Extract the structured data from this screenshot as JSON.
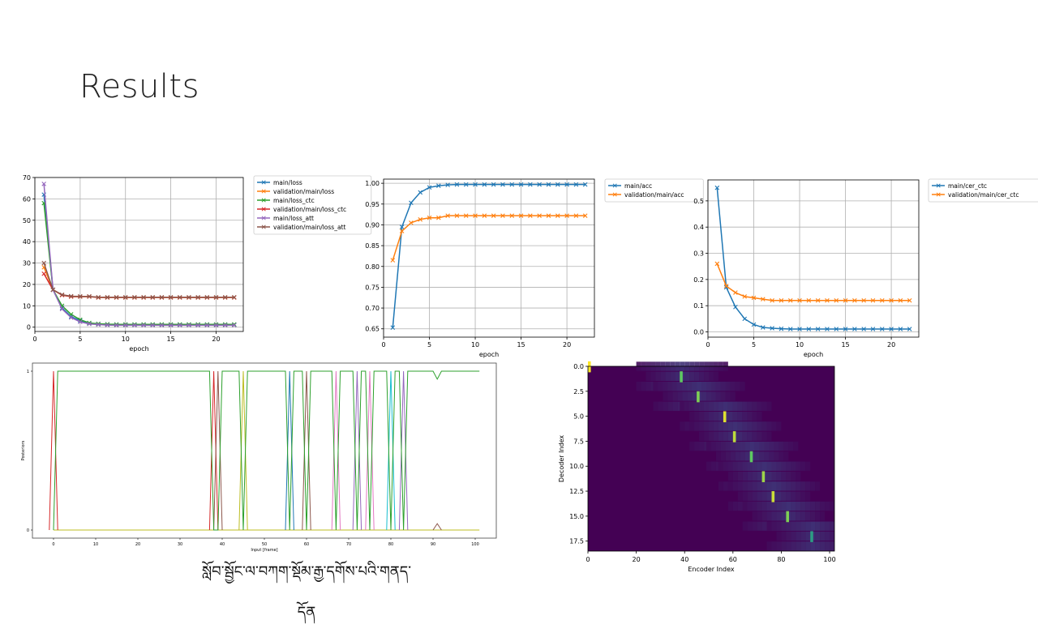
{
  "slide": {
    "title": "Results",
    "caption": "སློབ་སྦྱོང་ལ་བཀག་སྡོམ་རྒྱ་དགོས་པའི་གནད་དོན"
  },
  "chart_data": [
    {
      "id": "loss",
      "type": "line",
      "xlabel": "epoch",
      "ylabel": "",
      "xlim": [
        0,
        23
      ],
      "ylim": [
        -2,
        70
      ],
      "xticks": [
        0,
        5,
        10,
        15,
        20
      ],
      "yticks": [
        0,
        10,
        20,
        30,
        40,
        50,
        60,
        70
      ],
      "grid": true,
      "legend": "outside-right",
      "x": [
        1,
        2,
        3,
        4,
        5,
        6,
        7,
        8,
        9,
        10,
        11,
        12,
        13,
        14,
        15,
        16,
        17,
        18,
        19,
        20,
        21,
        22
      ],
      "series": [
        {
          "name": "main/loss",
          "color": "#1f77b4",
          "values": [
            62,
            17.5,
            9,
            5,
            3,
            1.8,
            1.4,
            1.2,
            1.1,
            1.1,
            1.1,
            1.1,
            1.1,
            1.1,
            1.1,
            1.1,
            1.1,
            1.1,
            1.1,
            1.1,
            1.1,
            1.1
          ]
        },
        {
          "name": "validation/main/loss",
          "color": "#ff7f0e",
          "values": [
            28,
            17.5,
            15,
            14.3,
            14.3,
            14.3,
            13.9,
            13.9,
            13.9,
            13.9,
            13.9,
            13.9,
            13.9,
            13.9,
            13.9,
            13.9,
            13.9,
            13.9,
            13.9,
            13.9,
            13.9,
            13.9
          ]
        },
        {
          "name": "main/loss_ctc",
          "color": "#2ca02c",
          "values": [
            58,
            17.5,
            10,
            6,
            3.5,
            2,
            1.6,
            1.4,
            1.3,
            1.3,
            1.3,
            1.3,
            1.3,
            1.3,
            1.3,
            1.3,
            1.3,
            1.3,
            1.3,
            1.3,
            1.3,
            1.3
          ]
        },
        {
          "name": "validation/main/loss_ctc",
          "color": "#d62728",
          "values": [
            25,
            17.5,
            15,
            14.3,
            14.3,
            14.3,
            13.9,
            13.9,
            13.9,
            13.9,
            13.9,
            13.9,
            13.9,
            13.9,
            13.9,
            13.9,
            13.9,
            13.9,
            13.9,
            13.9,
            13.9,
            13.9
          ]
        },
        {
          "name": "main/loss_att",
          "color": "#9467bd",
          "values": [
            67,
            17.5,
            8.5,
            4.5,
            2.5,
            1.5,
            1.2,
            1.0,
            0.9,
            0.9,
            0.9,
            0.9,
            0.9,
            0.9,
            0.9,
            0.9,
            0.9,
            0.9,
            0.9,
            0.9,
            0.9,
            0.9
          ]
        },
        {
          "name": "validation/main/loss_att",
          "color": "#8c564b",
          "values": [
            30,
            17.5,
            15.2,
            14.5,
            14.4,
            14.4,
            14.0,
            14.0,
            14.0,
            14.0,
            14.0,
            14.0,
            14.0,
            14.0,
            14.0,
            14.0,
            14.0,
            14.0,
            14.0,
            14.0,
            14.0,
            14.0
          ]
        }
      ]
    },
    {
      "id": "acc",
      "type": "line",
      "xlabel": "epoch",
      "ylabel": "",
      "xlim": [
        0,
        23
      ],
      "ylim": [
        0.63,
        1.01
      ],
      "xticks": [
        0,
        5,
        10,
        15,
        20
      ],
      "yticks": [
        0.65,
        0.7,
        0.75,
        0.8,
        0.85,
        0.9,
        0.95,
        1.0
      ],
      "grid": true,
      "legend": "outside-right",
      "x": [
        1,
        2,
        3,
        4,
        5,
        6,
        7,
        8,
        9,
        10,
        11,
        12,
        13,
        14,
        15,
        16,
        17,
        18,
        19,
        20,
        21,
        22
      ],
      "series": [
        {
          "name": "main/acc",
          "color": "#1f77b4",
          "values": [
            0.653,
            0.895,
            0.953,
            0.978,
            0.99,
            0.994,
            0.996,
            0.997,
            0.997,
            0.997,
            0.997,
            0.997,
            0.997,
            0.997,
            0.997,
            0.997,
            0.997,
            0.997,
            0.997,
            0.997,
            0.997,
            0.997
          ]
        },
        {
          "name": "validation/main/acc",
          "color": "#ff7f0e",
          "values": [
            0.815,
            0.885,
            0.905,
            0.913,
            0.917,
            0.917,
            0.922,
            0.922,
            0.922,
            0.922,
            0.922,
            0.922,
            0.922,
            0.922,
            0.922,
            0.922,
            0.922,
            0.922,
            0.922,
            0.922,
            0.922,
            0.922
          ]
        }
      ]
    },
    {
      "id": "cer",
      "type": "line",
      "xlabel": "epoch",
      "ylabel": "",
      "xlim": [
        0,
        23
      ],
      "ylim": [
        -0.02,
        0.58
      ],
      "xticks": [
        0,
        5,
        10,
        15,
        20
      ],
      "yticks": [
        0.0,
        0.1,
        0.2,
        0.3,
        0.4,
        0.5
      ],
      "grid": true,
      "legend": "outside-right",
      "x": [
        1,
        2,
        3,
        4,
        5,
        6,
        7,
        8,
        9,
        10,
        11,
        12,
        13,
        14,
        15,
        16,
        17,
        18,
        19,
        20,
        21,
        22
      ],
      "series": [
        {
          "name": "main/cer_ctc",
          "color": "#1f77b4",
          "values": [
            0.55,
            0.17,
            0.095,
            0.05,
            0.028,
            0.017,
            0.014,
            0.012,
            0.011,
            0.011,
            0.011,
            0.011,
            0.011,
            0.011,
            0.011,
            0.011,
            0.011,
            0.011,
            0.011,
            0.011,
            0.011,
            0.011
          ]
        },
        {
          "name": "validation/main/cer_ctc",
          "color": "#ff7f0e",
          "values": [
            0.26,
            0.175,
            0.15,
            0.135,
            0.13,
            0.125,
            0.12,
            0.12,
            0.12,
            0.12,
            0.12,
            0.12,
            0.12,
            0.12,
            0.12,
            0.12,
            0.12,
            0.12,
            0.12,
            0.12,
            0.12,
            0.12
          ]
        }
      ]
    },
    {
      "id": "ctc-posteriors",
      "type": "line",
      "xlabel": "Input [frame]",
      "ylabel": "Posteriors",
      "xlim": [
        -5,
        105
      ],
      "ylim": [
        0,
        1
      ],
      "xticks": [
        0,
        10,
        20,
        30,
        40,
        50,
        60,
        70,
        80,
        90,
        100
      ],
      "yticks": [
        0,
        1
      ],
      "grid": false,
      "blank_color": "#2ca02c",
      "blank_steps": [
        [
          0,
          0
        ],
        [
          1,
          1
        ],
        [
          37,
          1
        ],
        [
          38,
          0
        ],
        [
          39,
          0
        ],
        [
          40,
          1
        ],
        [
          44,
          1
        ],
        [
          45,
          0
        ],
        [
          46,
          1
        ],
        [
          55,
          1
        ],
        [
          56,
          0
        ],
        [
          57,
          1
        ],
        [
          59,
          1
        ],
        [
          60,
          0
        ],
        [
          61,
          1
        ],
        [
          66,
          1
        ],
        [
          67,
          0
        ],
        [
          68,
          1
        ],
        [
          71,
          1
        ],
        [
          72,
          0
        ],
        [
          73,
          1
        ],
        [
          74,
          1
        ],
        [
          75,
          0
        ],
        [
          76,
          1
        ],
        [
          79,
          1
        ],
        [
          80,
          0
        ],
        [
          81,
          1
        ],
        [
          82,
          1
        ],
        [
          83,
          0
        ],
        [
          84,
          1
        ],
        [
          90,
          1
        ],
        [
          91,
          0.95
        ],
        [
          92,
          1
        ],
        [
          101,
          1
        ]
      ],
      "spikes": [
        {
          "frame": 0,
          "color": "#d62728"
        },
        {
          "frame": 38,
          "color": "#d62728"
        },
        {
          "frame": 39,
          "color": "#8c564b"
        },
        {
          "frame": 45,
          "color": "#bcbd22"
        },
        {
          "frame": 56,
          "color": "#1f77b4"
        },
        {
          "frame": 60,
          "color": "#8c564b"
        },
        {
          "frame": 67,
          "color": "#e377c2"
        },
        {
          "frame": 72,
          "color": "#9467bd"
        },
        {
          "frame": 75,
          "color": "#e377c2"
        },
        {
          "frame": 80,
          "color": "#17becf"
        },
        {
          "frame": 83,
          "color": "#9467bd"
        }
      ],
      "bump": {
        "frame": 91,
        "value": 0.04,
        "color": "#8c564b"
      }
    },
    {
      "id": "attention",
      "type": "heatmap",
      "xlabel": "Encoder Index",
      "ylabel": "Decoder Index",
      "xlim": [
        0,
        102
      ],
      "ylim": [
        0,
        18.5
      ],
      "xticks": [
        0,
        20,
        40,
        60,
        80,
        100
      ],
      "yticks": [
        0.0,
        2.5,
        5.0,
        7.5,
        10.0,
        12.5,
        15.0,
        17.5
      ],
      "colors": {
        "background": "#440154"
      },
      "peaks": [
        {
          "row": 0,
          "col": 0,
          "value": 1.0
        },
        {
          "row": 1,
          "col": 38,
          "value": 0.75
        },
        {
          "row": 3,
          "col": 45,
          "value": 0.8
        },
        {
          "row": 5,
          "col": 56,
          "value": 0.95
        },
        {
          "row": 7,
          "col": 60,
          "value": 0.9
        },
        {
          "row": 9,
          "col": 67,
          "value": 0.75
        },
        {
          "row": 11,
          "col": 72,
          "value": 0.85
        },
        {
          "row": 13,
          "col": 76,
          "value": 0.92
        },
        {
          "row": 15,
          "col": 82,
          "value": 0.8
        },
        {
          "row": 17,
          "col": 92,
          "value": 0.55
        }
      ]
    }
  ]
}
